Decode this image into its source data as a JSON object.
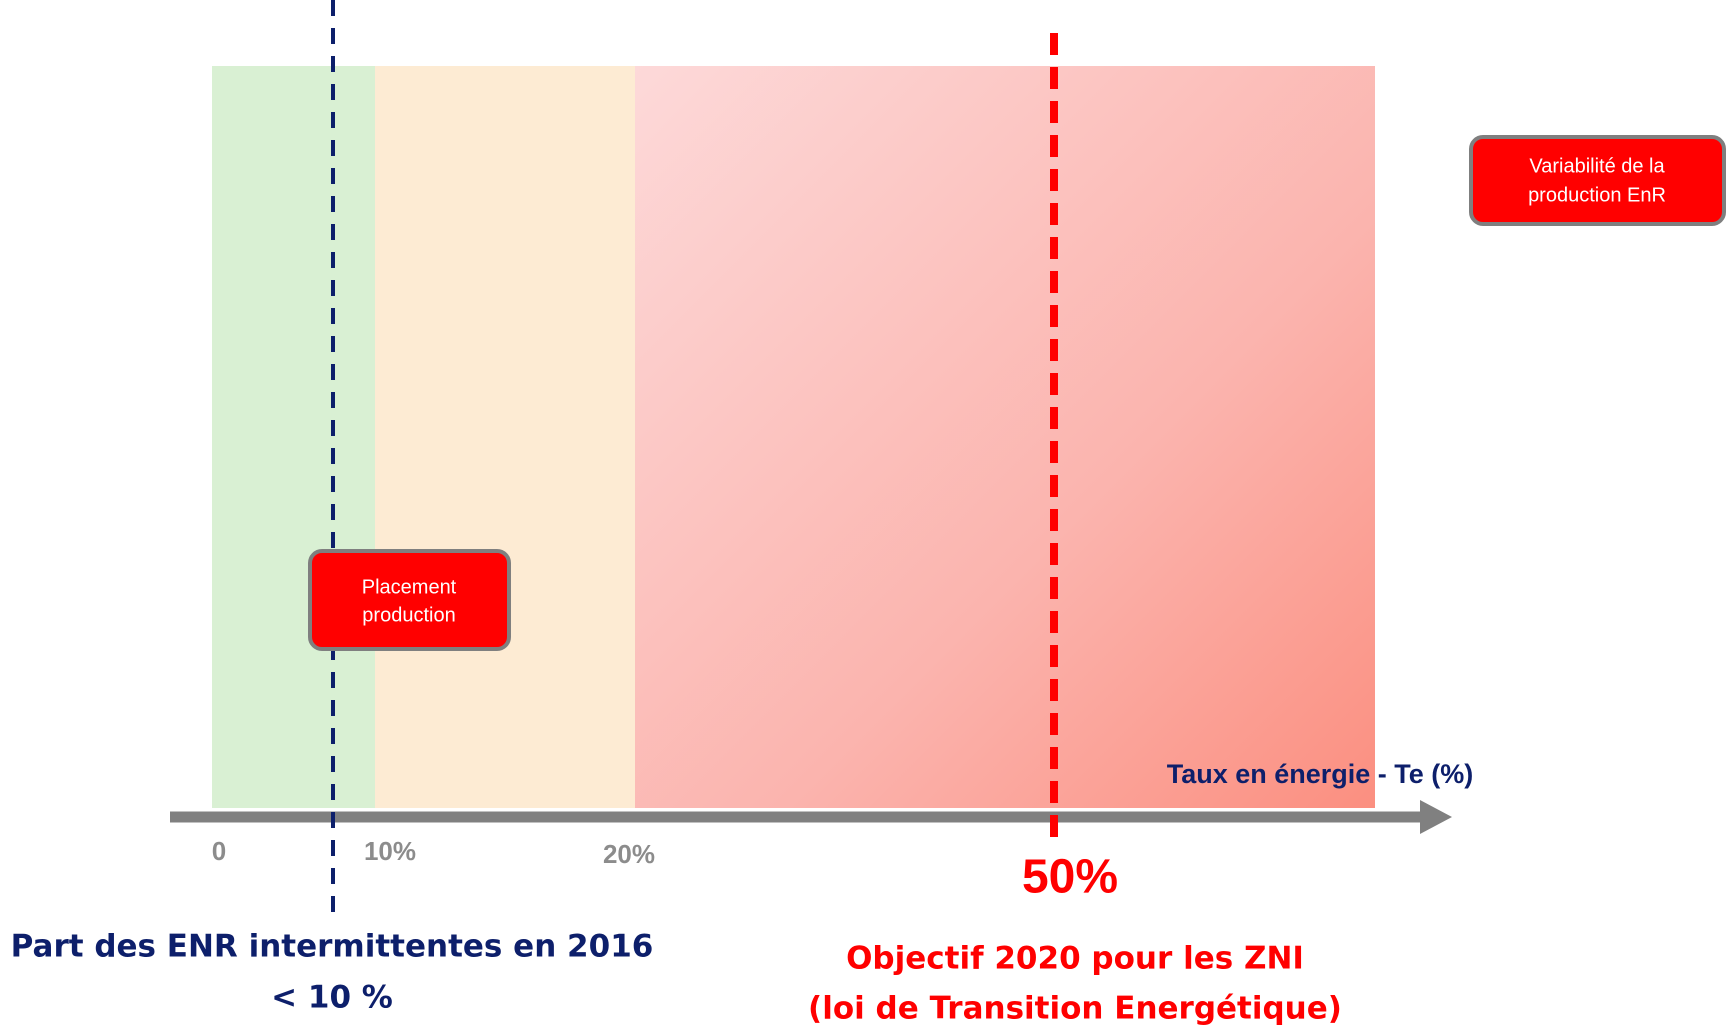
{
  "axis": {
    "title": "Taux en énergie - Te (%)",
    "ticks": [
      "0",
      "10%",
      "20%",
      "50%"
    ]
  },
  "boxes": [
    {
      "label": [
        "Variabilité de la",
        "production EnR"
      ]
    },
    {
      "label": [
        "Placement",
        "production"
      ]
    }
  ],
  "annotations": [
    {
      "lines": [
        "Part des ENR intermittentes en 2016",
        "< 10 %"
      ]
    },
    {
      "lines": [
        "Objectif 2020 pour les ZNI",
        "(loi de Transition Energétique)"
      ]
    }
  ]
}
